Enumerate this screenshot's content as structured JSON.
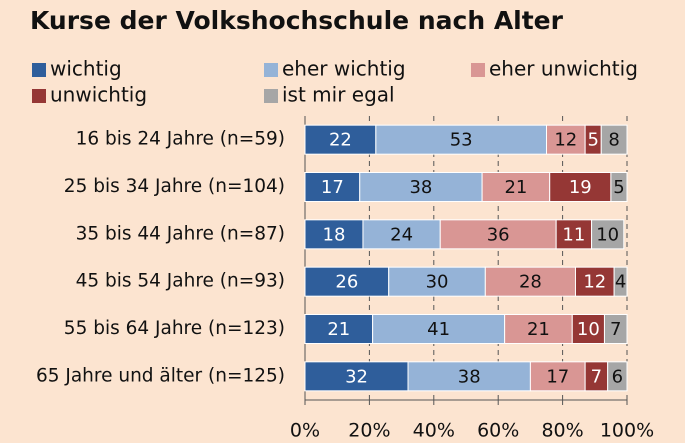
{
  "chart_data": {
    "type": "stacked-barh",
    "title": "Kurse der Volkshochschule nach Alter",
    "categories": [
      "16 bis 24 Jahre (n=59)",
      "25 bis 34 Jahre (n=104)",
      "35 bis 44 Jahre (n=87)",
      "45 bis 54 Jahre (n=93)",
      "55 bis 64 Jahre (n=123)",
      "65 Jahre und älter (n=125)"
    ],
    "series": [
      {
        "name": "wichtig",
        "color": "#2f5e9b",
        "values": [
          22,
          17,
          18,
          26,
          21,
          32
        ]
      },
      {
        "name": "eher wichtig",
        "color": "#95b3d7",
        "values": [
          53,
          38,
          24,
          30,
          41,
          38
        ]
      },
      {
        "name": "eher unwichtig",
        "color": "#d99694",
        "values": [
          12,
          21,
          36,
          28,
          21,
          17
        ]
      },
      {
        "name": "unwichtig",
        "color": "#953735",
        "values": [
          5,
          19,
          11,
          12,
          10,
          7
        ]
      },
      {
        "name": "ist mir egal",
        "color": "#a6a6a6",
        "values": [
          8,
          5,
          10,
          4,
          7,
          6
        ]
      }
    ],
    "xlim": [
      0,
      100
    ],
    "xticks": [
      {
        "value": 0,
        "label": "0%"
      },
      {
        "value": 20,
        "label": "20%"
      },
      {
        "value": 40,
        "label": "40%"
      },
      {
        "value": 60,
        "label": "60%"
      },
      {
        "value": 80,
        "label": "80%"
      },
      {
        "value": 100,
        "label": "100%"
      }
    ],
    "grid": true,
    "legend": "top"
  }
}
